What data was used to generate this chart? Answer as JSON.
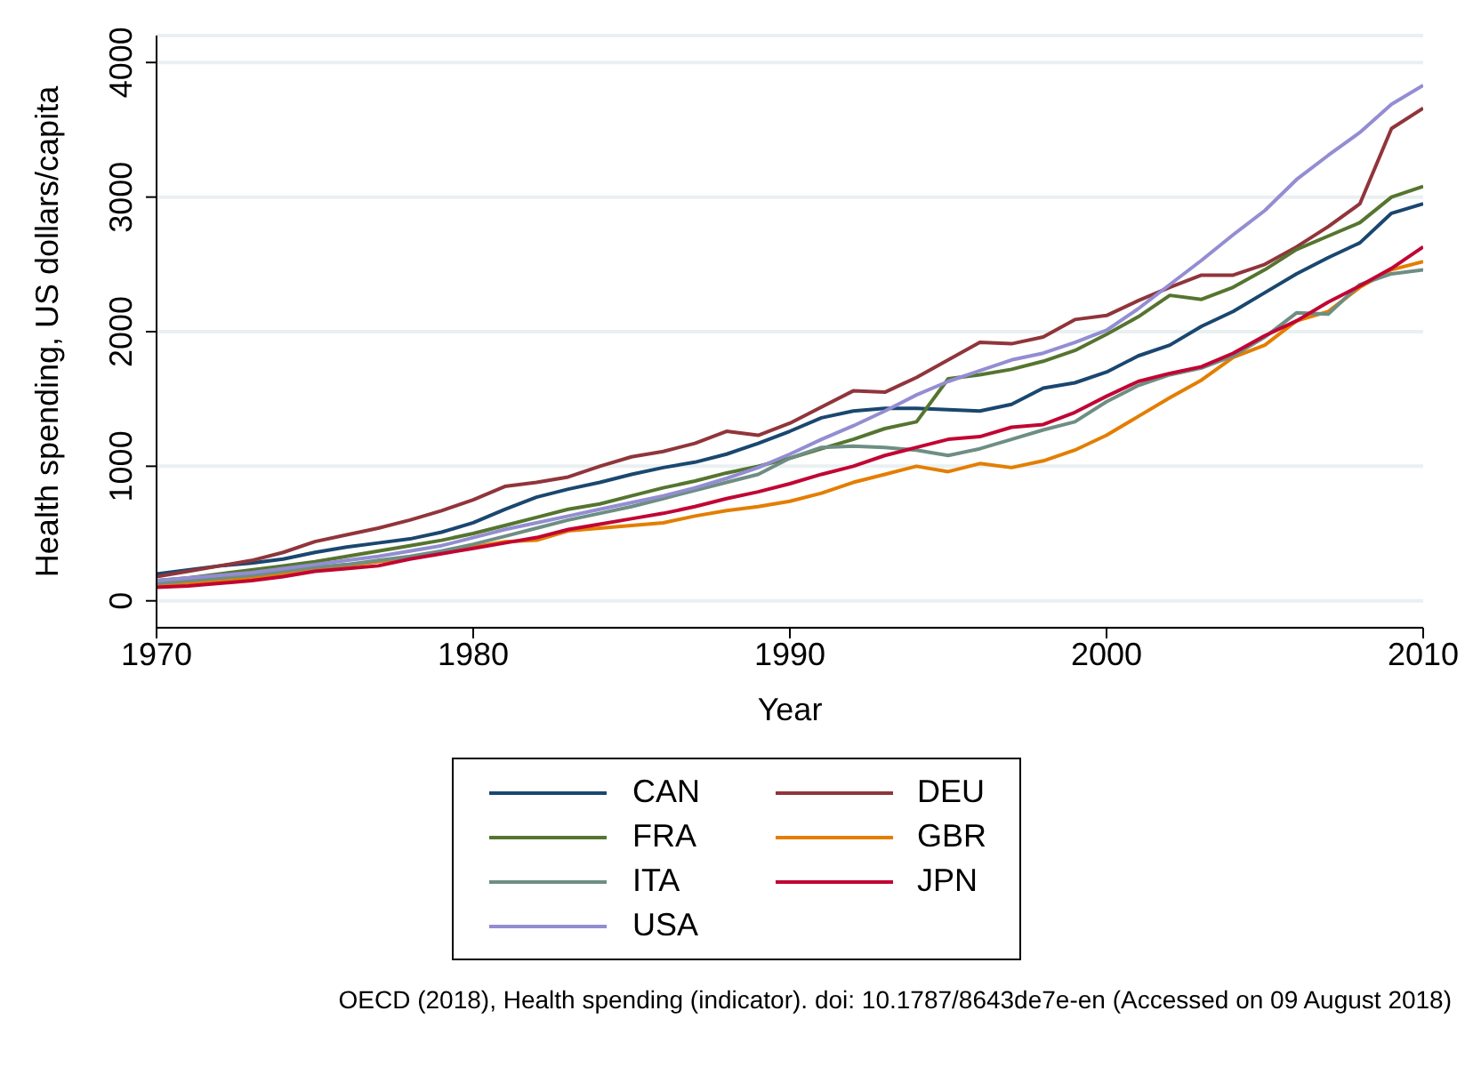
{
  "chart_data": {
    "type": "line",
    "xlabel": "Year",
    "ylabel": "Health spending, US dollars/capita",
    "x": [
      1970,
      1971,
      1972,
      1973,
      1974,
      1975,
      1976,
      1977,
      1978,
      1979,
      1980,
      1981,
      1982,
      1983,
      1984,
      1985,
      1986,
      1987,
      1988,
      1989,
      1990,
      1991,
      1992,
      1993,
      1994,
      1995,
      1996,
      1997,
      1998,
      1999,
      2000,
      2001,
      2002,
      2003,
      2004,
      2005,
      2006,
      2007,
      2008,
      2009,
      2010
    ],
    "series": [
      {
        "name": "CAN",
        "color": "#1a476f",
        "values": [
          200,
          230,
          260,
          280,
          310,
          360,
          400,
          430,
          460,
          510,
          580,
          680,
          770,
          830,
          880,
          940,
          990,
          1030,
          1090,
          1170,
          1260,
          1360,
          1410,
          1430,
          1430,
          1420,
          1410,
          1460,
          1580,
          1620,
          1700,
          1820,
          1900,
          2040,
          2150,
          2290,
          2430,
          2550,
          2660,
          2880,
          2950
        ]
      },
      {
        "name": "DEU",
        "color": "#90353b",
        "values": [
          180,
          220,
          260,
          300,
          360,
          440,
          490,
          540,
          600,
          670,
          750,
          850,
          880,
          920,
          1000,
          1070,
          1110,
          1170,
          1260,
          1230,
          1320,
          1440,
          1560,
          1550,
          1660,
          1790,
          1920,
          1910,
          1960,
          2090,
          2120,
          2230,
          2330,
          2420,
          2420,
          2500,
          2630,
          2780,
          2950,
          3510,
          3660
        ]
      },
      {
        "name": "FRA",
        "color": "#55752f",
        "values": [
          150,
          170,
          200,
          230,
          260,
          290,
          330,
          370,
          410,
          450,
          500,
          560,
          620,
          680,
          720,
          780,
          840,
          890,
          950,
          1000,
          1060,
          1130,
          1200,
          1280,
          1330,
          1650,
          1680,
          1720,
          1780,
          1860,
          1980,
          2110,
          2270,
          2240,
          2330,
          2460,
          2610,
          2710,
          2810,
          3000,
          3080
        ]
      },
      {
        "name": "GBR",
        "color": "#e37e00",
        "values": [
          120,
          130,
          150,
          170,
          200,
          240,
          260,
          290,
          320,
          360,
          400,
          440,
          450,
          520,
          540,
          560,
          580,
          630,
          670,
          700,
          740,
          800,
          880,
          940,
          1000,
          960,
          1020,
          990,
          1040,
          1120,
          1230,
          1370,
          1510,
          1640,
          1810,
          1900,
          2080,
          2150,
          2330,
          2460,
          2520
        ]
      },
      {
        "name": "ITA",
        "color": "#6e8e84",
        "values": [
          130,
          150,
          170,
          190,
          220,
          250,
          270,
          300,
          330,
          370,
          420,
          480,
          540,
          600,
          650,
          700,
          760,
          820,
          880,
          940,
          1060,
          1140,
          1150,
          1140,
          1120,
          1080,
          1130,
          1200,
          1270,
          1330,
          1480,
          1600,
          1680,
          1730,
          1820,
          1960,
          2140,
          2130,
          2350,
          2430,
          2460
        ]
      },
      {
        "name": "JPN",
        "color": "#c10534",
        "values": [
          100,
          110,
          130,
          150,
          180,
          220,
          240,
          260,
          310,
          350,
          390,
          430,
          470,
          530,
          570,
          610,
          650,
          700,
          760,
          810,
          870,
          940,
          1000,
          1080,
          1140,
          1200,
          1220,
          1290,
          1310,
          1400,
          1520,
          1630,
          1690,
          1740,
          1840,
          1970,
          2080,
          2220,
          2340,
          2470,
          2630
        ]
      },
      {
        "name": "USA",
        "color": "#938dd2",
        "values": [
          150,
          170,
          190,
          210,
          240,
          270,
          300,
          330,
          370,
          410,
          470,
          530,
          580,
          630,
          680,
          730,
          780,
          840,
          910,
          990,
          1090,
          1200,
          1300,
          1410,
          1530,
          1630,
          1710,
          1790,
          1840,
          1920,
          2010,
          2170,
          2350,
          2530,
          2720,
          2900,
          3130,
          3310,
          3480,
          3690,
          3830
        ]
      }
    ],
    "xlim": [
      1970,
      2010
    ],
    "xticks": [
      1970,
      1980,
      1990,
      2000,
      2010
    ],
    "ylim": [
      -200,
      4200
    ],
    "yticks": [
      0,
      1000,
      2000,
      3000,
      4000
    ],
    "grid": "y",
    "legend": "bottom",
    "marker": "none",
    "line_style": "solid",
    "annotations": [
      "OECD (2018), Health spending (indicator). doi: 10.1787/8643de7e-en (Accessed on 09 August 2018)"
    ]
  }
}
